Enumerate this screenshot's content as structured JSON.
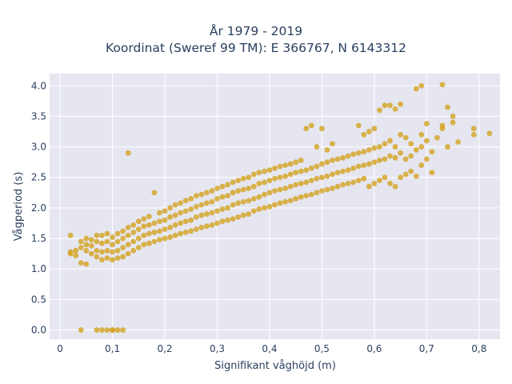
{
  "chart_data": {
    "type": "scatter",
    "title_line1": "År 1979 - 2019",
    "title_line2": "Koordinat (Sweref 99 TM): E 366767, N 6143312",
    "xlabel": "Signifikant våghöjd (m)",
    "ylabel": "Vågperiod (s)",
    "xlim": [
      -0.02,
      0.84
    ],
    "ylim": [
      -0.15,
      4.2
    ],
    "x_ticks": [
      0,
      0.1,
      0.2,
      0.3,
      0.4,
      0.5,
      0.6,
      0.7,
      0.8
    ],
    "x_tick_labels": [
      "0",
      "0,1",
      "0,2",
      "0,3",
      "0,4",
      "0,5",
      "0,6",
      "0,7",
      "0,8"
    ],
    "y_ticks": [
      0,
      0.5,
      1,
      1.5,
      2,
      2.5,
      3,
      3.5,
      4
    ],
    "y_tick_labels": [
      "0.0",
      "0.5",
      "1.0",
      "1.5",
      "2.0",
      "2.5",
      "3.0",
      "3.5",
      "4.0"
    ],
    "grid": true,
    "background_color": "#e5e6f0",
    "marker_color": "#d4a21f",
    "series": [
      {
        "points": [
          [
            0.02,
            1.55
          ],
          [
            0.02,
            1.28
          ],
          [
            0.02,
            1.25
          ],
          [
            0.03,
            1.3
          ],
          [
            0.03,
            1.22
          ],
          [
            0.04,
            1.1
          ],
          [
            0.04,
            1.35
          ],
          [
            0.04,
            1.45
          ],
          [
            0.05,
            1.08
          ],
          [
            0.05,
            1.3
          ],
          [
            0.05,
            1.4
          ],
          [
            0.05,
            1.5
          ],
          [
            0.06,
            1.25
          ],
          [
            0.06,
            1.38
          ],
          [
            0.06,
            1.48
          ],
          [
            0.07,
            1.2
          ],
          [
            0.07,
            1.3
          ],
          [
            0.07,
            1.45
          ],
          [
            0.07,
            1.55
          ],
          [
            0.08,
            1.15
          ],
          [
            0.08,
            1.28
          ],
          [
            0.08,
            1.42
          ],
          [
            0.08,
            1.55
          ],
          [
            0.09,
            1.18
          ],
          [
            0.09,
            1.3
          ],
          [
            0.09,
            1.45
          ],
          [
            0.09,
            1.58
          ],
          [
            0.1,
            1.15
          ],
          [
            0.1,
            1.28
          ],
          [
            0.1,
            1.4
          ],
          [
            0.1,
            1.52
          ],
          [
            0.11,
            1.18
          ],
          [
            0.11,
            1.3
          ],
          [
            0.11,
            1.45
          ],
          [
            0.11,
            1.58
          ],
          [
            0.12,
            1.2
          ],
          [
            0.12,
            1.35
          ],
          [
            0.12,
            1.5
          ],
          [
            0.12,
            1.62
          ],
          [
            0.13,
            1.25
          ],
          [
            0.13,
            1.4
          ],
          [
            0.13,
            1.55
          ],
          [
            0.13,
            1.68
          ],
          [
            0.13,
            2.9
          ],
          [
            0.14,
            1.3
          ],
          [
            0.14,
            1.45
          ],
          [
            0.14,
            1.6
          ],
          [
            0.14,
            1.72
          ],
          [
            0.15,
            1.35
          ],
          [
            0.15,
            1.5
          ],
          [
            0.15,
            1.65
          ],
          [
            0.15,
            1.78
          ],
          [
            0.16,
            1.4
          ],
          [
            0.16,
            1.55
          ],
          [
            0.16,
            1.7
          ],
          [
            0.16,
            1.82
          ],
          [
            0.17,
            1.42
          ],
          [
            0.17,
            1.58
          ],
          [
            0.17,
            1.72
          ],
          [
            0.17,
            1.86
          ],
          [
            0.18,
            1.45
          ],
          [
            0.18,
            1.6
          ],
          [
            0.18,
            1.75
          ],
          [
            0.18,
            2.25
          ],
          [
            0.19,
            1.48
          ],
          [
            0.19,
            1.62
          ],
          [
            0.19,
            1.78
          ],
          [
            0.19,
            1.92
          ],
          [
            0.2,
            1.5
          ],
          [
            0.2,
            1.65
          ],
          [
            0.2,
            1.8
          ],
          [
            0.2,
            1.95
          ],
          [
            0.21,
            1.52
          ],
          [
            0.21,
            1.68
          ],
          [
            0.21,
            1.85
          ],
          [
            0.21,
            2.0
          ],
          [
            0.22,
            1.55
          ],
          [
            0.22,
            1.72
          ],
          [
            0.22,
            1.88
          ],
          [
            0.22,
            2.05
          ],
          [
            0.23,
            1.58
          ],
          [
            0.23,
            1.75
          ],
          [
            0.23,
            1.92
          ],
          [
            0.23,
            2.08
          ],
          [
            0.24,
            1.6
          ],
          [
            0.24,
            1.78
          ],
          [
            0.24,
            1.95
          ],
          [
            0.24,
            2.12
          ],
          [
            0.25,
            1.62
          ],
          [
            0.25,
            1.8
          ],
          [
            0.25,
            1.98
          ],
          [
            0.25,
            2.15
          ],
          [
            0.26,
            1.65
          ],
          [
            0.26,
            1.85
          ],
          [
            0.26,
            2.02
          ],
          [
            0.26,
            2.2
          ],
          [
            0.27,
            1.68
          ],
          [
            0.27,
            1.88
          ],
          [
            0.27,
            2.05
          ],
          [
            0.27,
            2.22
          ],
          [
            0.28,
            1.7
          ],
          [
            0.28,
            1.9
          ],
          [
            0.28,
            2.08
          ],
          [
            0.28,
            2.25
          ],
          [
            0.29,
            1.72
          ],
          [
            0.29,
            1.92
          ],
          [
            0.29,
            2.1
          ],
          [
            0.29,
            2.28
          ],
          [
            0.3,
            1.75
          ],
          [
            0.3,
            1.95
          ],
          [
            0.3,
            2.15
          ],
          [
            0.3,
            2.32
          ],
          [
            0.31,
            1.78
          ],
          [
            0.31,
            1.98
          ],
          [
            0.31,
            2.18
          ],
          [
            0.31,
            2.35
          ],
          [
            0.32,
            1.8
          ],
          [
            0.32,
            2.0
          ],
          [
            0.32,
            2.2
          ],
          [
            0.32,
            2.38
          ],
          [
            0.33,
            1.82
          ],
          [
            0.33,
            2.05
          ],
          [
            0.33,
            2.25
          ],
          [
            0.33,
            2.42
          ],
          [
            0.34,
            1.85
          ],
          [
            0.34,
            2.08
          ],
          [
            0.34,
            2.28
          ],
          [
            0.34,
            2.45
          ],
          [
            0.35,
            1.88
          ],
          [
            0.35,
            2.1
          ],
          [
            0.35,
            2.3
          ],
          [
            0.35,
            2.48
          ],
          [
            0.36,
            1.9
          ],
          [
            0.36,
            2.12
          ],
          [
            0.36,
            2.32
          ],
          [
            0.36,
            2.5
          ],
          [
            0.37,
            1.95
          ],
          [
            0.37,
            2.15
          ],
          [
            0.37,
            2.35
          ],
          [
            0.37,
            2.55
          ],
          [
            0.38,
            1.98
          ],
          [
            0.38,
            2.18
          ],
          [
            0.38,
            2.4
          ],
          [
            0.38,
            2.58
          ],
          [
            0.39,
            2.0
          ],
          [
            0.39,
            2.22
          ],
          [
            0.39,
            2.42
          ],
          [
            0.39,
            2.6
          ],
          [
            0.4,
            2.02
          ],
          [
            0.4,
            2.25
          ],
          [
            0.4,
            2.45
          ],
          [
            0.4,
            2.62
          ],
          [
            0.41,
            2.05
          ],
          [
            0.41,
            2.28
          ],
          [
            0.41,
            2.48
          ],
          [
            0.41,
            2.65
          ],
          [
            0.42,
            2.08
          ],
          [
            0.42,
            2.3
          ],
          [
            0.42,
            2.5
          ],
          [
            0.42,
            2.68
          ],
          [
            0.43,
            2.1
          ],
          [
            0.43,
            2.32
          ],
          [
            0.43,
            2.52
          ],
          [
            0.43,
            2.7
          ],
          [
            0.44,
            2.12
          ],
          [
            0.44,
            2.35
          ],
          [
            0.44,
            2.55
          ],
          [
            0.44,
            2.72
          ],
          [
            0.45,
            2.15
          ],
          [
            0.45,
            2.38
          ],
          [
            0.45,
            2.58
          ],
          [
            0.45,
            2.75
          ],
          [
            0.46,
            2.18
          ],
          [
            0.46,
            2.4
          ],
          [
            0.46,
            2.6
          ],
          [
            0.46,
            2.78
          ],
          [
            0.47,
            2.2
          ],
          [
            0.47,
            2.42
          ],
          [
            0.47,
            2.62
          ],
          [
            0.47,
            3.3
          ],
          [
            0.48,
            2.22
          ],
          [
            0.48,
            2.45
          ],
          [
            0.48,
            2.65
          ],
          [
            0.48,
            3.35
          ],
          [
            0.49,
            2.25
          ],
          [
            0.49,
            2.48
          ],
          [
            0.49,
            2.68
          ],
          [
            0.49,
            3.0
          ],
          [
            0.5,
            2.28
          ],
          [
            0.5,
            2.5
          ],
          [
            0.5,
            2.72
          ],
          [
            0.5,
            3.3
          ],
          [
            0.51,
            2.3
          ],
          [
            0.51,
            2.52
          ],
          [
            0.51,
            2.75
          ],
          [
            0.51,
            2.95
          ],
          [
            0.52,
            2.32
          ],
          [
            0.52,
            2.55
          ],
          [
            0.52,
            2.78
          ],
          [
            0.52,
            3.05
          ],
          [
            0.53,
            2.35
          ],
          [
            0.53,
            2.58
          ],
          [
            0.53,
            2.8
          ],
          [
            0.54,
            2.38
          ],
          [
            0.54,
            2.6
          ],
          [
            0.54,
            2.82
          ],
          [
            0.55,
            2.4
          ],
          [
            0.55,
            2.62
          ],
          [
            0.55,
            2.85
          ],
          [
            0.56,
            2.42
          ],
          [
            0.56,
            2.65
          ],
          [
            0.56,
            2.88
          ],
          [
            0.57,
            2.45
          ],
          [
            0.57,
            2.68
          ],
          [
            0.57,
            2.9
          ],
          [
            0.57,
            3.35
          ],
          [
            0.58,
            2.48
          ],
          [
            0.58,
            2.7
          ],
          [
            0.58,
            2.92
          ],
          [
            0.58,
            3.2
          ],
          [
            0.59,
            2.35
          ],
          [
            0.59,
            2.72
          ],
          [
            0.59,
            2.95
          ],
          [
            0.59,
            3.25
          ],
          [
            0.6,
            2.4
          ],
          [
            0.6,
            2.75
          ],
          [
            0.6,
            2.98
          ],
          [
            0.6,
            3.3
          ],
          [
            0.61,
            2.45
          ],
          [
            0.61,
            2.78
          ],
          [
            0.61,
            3.0
          ],
          [
            0.61,
            3.6
          ],
          [
            0.62,
            2.5
          ],
          [
            0.62,
            2.8
          ],
          [
            0.62,
            3.05
          ],
          [
            0.62,
            3.68
          ],
          [
            0.63,
            2.4
          ],
          [
            0.63,
            2.85
          ],
          [
            0.63,
            3.1
          ],
          [
            0.63,
            3.68
          ],
          [
            0.64,
            2.35
          ],
          [
            0.64,
            2.82
          ],
          [
            0.64,
            3.0
          ],
          [
            0.64,
            3.62
          ],
          [
            0.65,
            2.5
          ],
          [
            0.65,
            2.9
          ],
          [
            0.65,
            3.2
          ],
          [
            0.65,
            3.7
          ],
          [
            0.66,
            2.55
          ],
          [
            0.66,
            2.8
          ],
          [
            0.66,
            3.15
          ],
          [
            0.67,
            2.6
          ],
          [
            0.67,
            2.85
          ],
          [
            0.67,
            3.05
          ],
          [
            0.68,
            2.52
          ],
          [
            0.68,
            2.95
          ],
          [
            0.68,
            3.95
          ],
          [
            0.69,
            2.7
          ],
          [
            0.69,
            3.0
          ],
          [
            0.69,
            3.2
          ],
          [
            0.69,
            4.0
          ],
          [
            0.7,
            2.8
          ],
          [
            0.7,
            3.1
          ],
          [
            0.7,
            3.38
          ],
          [
            0.71,
            2.58
          ],
          [
            0.71,
            2.92
          ],
          [
            0.72,
            3.15
          ],
          [
            0.73,
            3.3
          ],
          [
            0.73,
            3.35
          ],
          [
            0.73,
            4.02
          ],
          [
            0.74,
            3.0
          ],
          [
            0.74,
            3.65
          ],
          [
            0.75,
            3.5
          ],
          [
            0.75,
            3.4
          ],
          [
            0.76,
            3.08
          ],
          [
            0.79,
            3.3
          ],
          [
            0.79,
            3.2
          ],
          [
            0.82,
            3.22
          ],
          [
            0.04,
            0.0
          ],
          [
            0.07,
            0.0
          ],
          [
            0.08,
            0.0
          ],
          [
            0.09,
            0.0
          ],
          [
            0.1,
            0.0
          ],
          [
            0.11,
            0.0
          ],
          [
            0.12,
            0.0
          ],
          [
            0.1,
            0.0
          ]
        ]
      }
    ]
  }
}
